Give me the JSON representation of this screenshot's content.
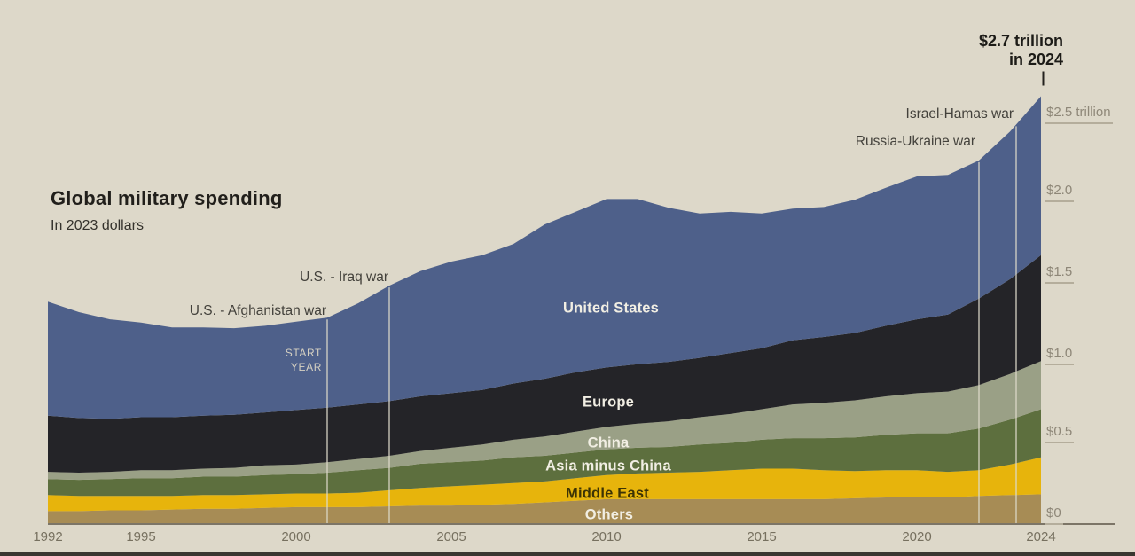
{
  "page": {
    "background": "#ddd8c9",
    "footer_bar_color": "#3a3731"
  },
  "title": "Global military spending",
  "subtitle": "In 2023 dollars",
  "peak_annotation": {
    "line1": "$2.7 trillion",
    "line2": "in 2024"
  },
  "start_year_label": {
    "line1": "START",
    "line2": "YEAR"
  },
  "events": [
    {
      "label": "U.S. - Afghanistan war",
      "year": 2001
    },
    {
      "label": "U.S. - Iraq war",
      "year": 2003
    },
    {
      "label": "Russia-Ukraine war",
      "year": 2022
    },
    {
      "label": "Israel-Hamas war",
      "year": 2023.2
    }
  ],
  "y_axis": {
    "ticks": [
      {
        "label": "$2.5 trillion",
        "value": 2.5
      },
      {
        "label": "$2.0",
        "value": 2.0
      },
      {
        "label": "$1.5",
        "value": 1.5
      },
      {
        "label": "$1.0",
        "value": 1.0
      },
      {
        "label": "$0.5",
        "value": 0.5
      },
      {
        "label": "$0",
        "value": 0
      }
    ]
  },
  "x_axis": {
    "ticks": [
      "1992",
      "1995",
      "2000",
      "2005",
      "2010",
      "2015",
      "2020",
      "2024"
    ]
  },
  "chart_data": {
    "type": "area",
    "stacked": true,
    "title": "Global military spending",
    "subtitle": "In 2023 dollars",
    "y_unit": "trillions of 2023 US dollars",
    "ylim": [
      0,
      2.7
    ],
    "x_range": [
      1992,
      2024
    ],
    "grid": false,
    "legend": "in-chart labels",
    "total_2024": "$2.7 trillion",
    "years": [
      1992,
      1993,
      1994,
      1995,
      1996,
      1997,
      1998,
      1999,
      2000,
      2001,
      2002,
      2003,
      2004,
      2005,
      2006,
      2007,
      2008,
      2009,
      2010,
      2011,
      2012,
      2013,
      2014,
      2015,
      2016,
      2017,
      2018,
      2019,
      2020,
      2021,
      2022,
      2023,
      2024
    ],
    "series": [
      {
        "name": "United States",
        "color": "#4e608a",
        "values": [
          0.71,
          0.66,
          0.62,
          0.59,
          0.56,
          0.55,
          0.54,
          0.54,
          0.55,
          0.56,
          0.63,
          0.72,
          0.78,
          0.82,
          0.84,
          0.87,
          0.96,
          1.0,
          1.05,
          1.03,
          0.96,
          0.9,
          0.88,
          0.84,
          0.82,
          0.81,
          0.83,
          0.86,
          0.89,
          0.87,
          0.86,
          0.92,
          0.99
        ]
      },
      {
        "name": "Europe",
        "color": "#242428",
        "values": [
          0.35,
          0.34,
          0.33,
          0.33,
          0.33,
          0.33,
          0.33,
          0.33,
          0.34,
          0.34,
          0.34,
          0.34,
          0.34,
          0.34,
          0.34,
          0.35,
          0.36,
          0.37,
          0.37,
          0.37,
          0.37,
          0.37,
          0.38,
          0.38,
          0.4,
          0.41,
          0.42,
          0.44,
          0.46,
          0.48,
          0.54,
          0.59,
          0.66
        ]
      },
      {
        "name": "China",
        "color": "#9aa086",
        "values": [
          0.045,
          0.045,
          0.045,
          0.05,
          0.05,
          0.05,
          0.055,
          0.06,
          0.06,
          0.065,
          0.07,
          0.075,
          0.08,
          0.09,
          0.1,
          0.11,
          0.12,
          0.13,
          0.14,
          0.15,
          0.16,
          0.17,
          0.18,
          0.19,
          0.21,
          0.22,
          0.23,
          0.24,
          0.25,
          0.26,
          0.27,
          0.285,
          0.3
        ]
      },
      {
        "name": "Asia minus China",
        "color": "#5d6f3e",
        "values": [
          0.1,
          0.1,
          0.105,
          0.11,
          0.11,
          0.115,
          0.115,
          0.12,
          0.12,
          0.13,
          0.14,
          0.14,
          0.15,
          0.15,
          0.15,
          0.16,
          0.16,
          0.16,
          0.16,
          0.16,
          0.16,
          0.17,
          0.17,
          0.18,
          0.19,
          0.2,
          0.21,
          0.22,
          0.23,
          0.24,
          0.26,
          0.28,
          0.3
        ]
      },
      {
        "name": "Middle East",
        "color": "#e7b40c",
        "values": [
          0.1,
          0.095,
          0.09,
          0.09,
          0.085,
          0.085,
          0.085,
          0.085,
          0.085,
          0.085,
          0.09,
          0.1,
          0.11,
          0.12,
          0.125,
          0.13,
          0.13,
          0.14,
          0.15,
          0.16,
          0.165,
          0.17,
          0.18,
          0.19,
          0.19,
          0.18,
          0.17,
          0.17,
          0.17,
          0.16,
          0.16,
          0.19,
          0.23
        ]
      },
      {
        "name": "Others",
        "color": "#a78c55",
        "values": [
          0.075,
          0.075,
          0.08,
          0.08,
          0.085,
          0.09,
          0.09,
          0.095,
          0.1,
          0.1,
          0.1,
          0.105,
          0.11,
          0.11,
          0.115,
          0.12,
          0.13,
          0.14,
          0.15,
          0.15,
          0.15,
          0.15,
          0.15,
          0.15,
          0.15,
          0.15,
          0.155,
          0.16,
          0.16,
          0.16,
          0.17,
          0.175,
          0.18
        ]
      }
    ]
  }
}
